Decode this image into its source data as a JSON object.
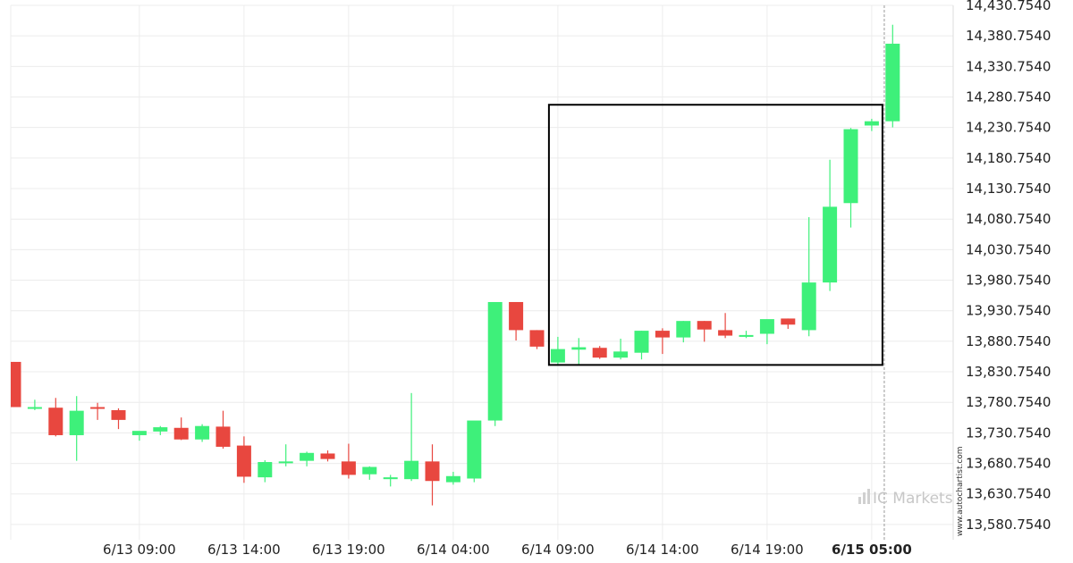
{
  "colors": {
    "up": "#3ef07a",
    "down": "#e8473f",
    "grid": "#ececec",
    "box": "#000000",
    "now_line": "#999999"
  },
  "watermark": {
    "text": "IC Markets",
    "icon": "ic-markets-logo-icon"
  },
  "credit": "www.autochartist.com",
  "chart_data": {
    "type": "candlestick",
    "title": "",
    "xlabel": "",
    "ylabel": "",
    "ylim": [
      13555.754,
      14430.754
    ],
    "y_ticks": [
      "14,430.7540",
      "14,380.7540",
      "14,330.7540",
      "14,280.7540",
      "14,230.7540",
      "14,180.7540",
      "14,130.7540",
      "14,080.7540",
      "14,030.7540",
      "13,980.7540",
      "13,930.7540",
      "13,880.7540",
      "13,830.7540",
      "13,780.7540",
      "13,730.7540",
      "13,680.7540",
      "13,630.7540",
      "13,580.7540"
    ],
    "x_ticks": [
      {
        "label": "6/13 09:00",
        "index": 6,
        "bold": false
      },
      {
        "label": "6/13 14:00",
        "index": 11,
        "bold": false
      },
      {
        "label": "6/13 19:00",
        "index": 16,
        "bold": false
      },
      {
        "label": "6/14 04:00",
        "index": 21,
        "bold": false
      },
      {
        "label": "6/14 09:00",
        "index": 26,
        "bold": false
      },
      {
        "label": "6/14 14:00",
        "index": 31,
        "bold": false
      },
      {
        "label": "6/14 19:00",
        "index": 36,
        "bold": false
      },
      {
        "label": "6/15 05:00",
        "index": 41,
        "bold": true
      }
    ],
    "grid": true,
    "candles": [
      {
        "o": 13847,
        "h": 13847,
        "l": 13773,
        "c": 13773
      },
      {
        "o": 13772,
        "h": 13785,
        "l": 13768,
        "c": 13773
      },
      {
        "o": 13772,
        "h": 13788,
        "l": 13725,
        "c": 13727
      },
      {
        "o": 13727,
        "h": 13791,
        "l": 13685,
        "c": 13767
      },
      {
        "o": 13773,
        "h": 13780,
        "l": 13752,
        "c": 13771
      },
      {
        "o": 13768,
        "h": 13771,
        "l": 13737,
        "c": 13752
      },
      {
        "o": 13727,
        "h": 13733,
        "l": 13718,
        "c": 13734
      },
      {
        "o": 13733,
        "h": 13742,
        "l": 13727,
        "c": 13740
      },
      {
        "o": 13739,
        "h": 13756,
        "l": 13719,
        "c": 13720
      },
      {
        "o": 13720,
        "h": 13745,
        "l": 13716,
        "c": 13742
      },
      {
        "o": 13741,
        "h": 13767,
        "l": 13705,
        "c": 13708
      },
      {
        "o": 13710,
        "h": 13725,
        "l": 13649,
        "c": 13659
      },
      {
        "o": 13658,
        "h": 13686,
        "l": 13650,
        "c": 13683
      },
      {
        "o": 13683,
        "h": 13712,
        "l": 13676,
        "c": 13684
      },
      {
        "o": 13685,
        "h": 13700,
        "l": 13676,
        "c": 13698
      },
      {
        "o": 13697,
        "h": 13702,
        "l": 13684,
        "c": 13688
      },
      {
        "o": 13684,
        "h": 13713,
        "l": 13656,
        "c": 13662
      },
      {
        "o": 13663,
        "h": 13676,
        "l": 13654,
        "c": 13675
      },
      {
        "o": 13655,
        "h": 13662,
        "l": 13643,
        "c": 13658
      },
      {
        "o": 13655,
        "h": 13796,
        "l": 13652,
        "c": 13685
      },
      {
        "o": 13684,
        "h": 13712,
        "l": 13612,
        "c": 13652
      },
      {
        "o": 13650,
        "h": 13667,
        "l": 13646,
        "c": 13660
      },
      {
        "o": 13656,
        "h": 13750,
        "l": 13650,
        "c": 13751
      },
      {
        "o": 13751,
        "h": 13945,
        "l": 13742,
        "c": 13945
      },
      {
        "o": 13945,
        "h": 13945,
        "l": 13882,
        "c": 13899
      },
      {
        "o": 13899,
        "h": 13899,
        "l": 13868,
        "c": 13872
      },
      {
        "o": 13846,
        "h": 13888,
        "l": 13843,
        "c": 13868
      },
      {
        "o": 13867,
        "h": 13886,
        "l": 13843,
        "c": 13871
      },
      {
        "o": 13870,
        "h": 13873,
        "l": 13852,
        "c": 13854
      },
      {
        "o": 13854,
        "h": 13885,
        "l": 13851,
        "c": 13864
      },
      {
        "o": 13862,
        "h": 13898,
        "l": 13851,
        "c": 13898
      },
      {
        "o": 13898,
        "h": 13902,
        "l": 13860,
        "c": 13887
      },
      {
        "o": 13887,
        "h": 13914,
        "l": 13879,
        "c": 13914
      },
      {
        "o": 13914,
        "h": 13914,
        "l": 13880,
        "c": 13900
      },
      {
        "o": 13899,
        "h": 13927,
        "l": 13886,
        "c": 13890
      },
      {
        "o": 13888,
        "h": 13898,
        "l": 13886,
        "c": 13891
      },
      {
        "o": 13893,
        "h": 13916,
        "l": 13876,
        "c": 13917
      },
      {
        "o": 13918,
        "h": 13918,
        "l": 13901,
        "c": 13908
      },
      {
        "o": 13899,
        "h": 14084,
        "l": 13889,
        "c": 13977
      },
      {
        "o": 13977,
        "h": 14178,
        "l": 13963,
        "c": 14101
      },
      {
        "o": 14107,
        "h": 14230,
        "l": 14067,
        "c": 14228
      },
      {
        "o": 14234,
        "h": 14245,
        "l": 14225,
        "c": 14241
      },
      {
        "o": 14241,
        "h": 14399,
        "l": 14231,
        "c": 14368
      }
    ],
    "pattern_box": {
      "start_index": 26,
      "end_index": 41,
      "high": 14268,
      "low": 13842
    }
  }
}
